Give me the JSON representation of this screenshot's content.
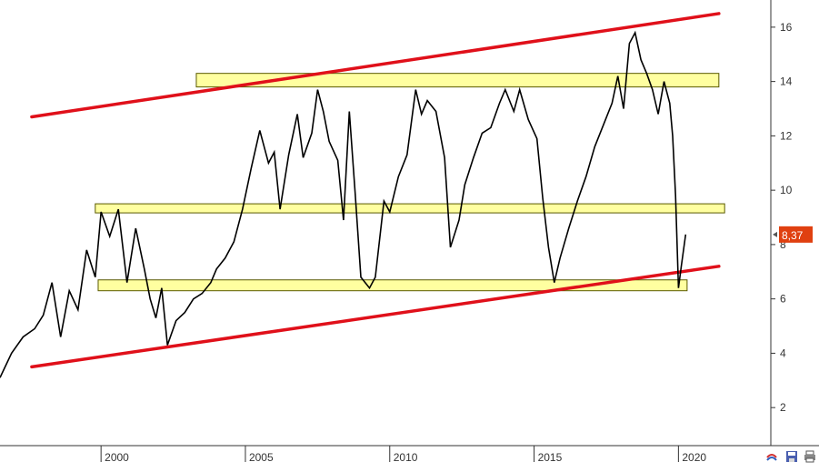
{
  "chart_data": {
    "type": "line",
    "title": "",
    "xlabel": "",
    "ylabel": "",
    "x_ticks": [
      "2000",
      "2005",
      "2010",
      "2015",
      "2020"
    ],
    "x_tick_values": [
      2000,
      2005,
      2010,
      2015,
      2020
    ],
    "y_ticks": [
      "2",
      "4",
      "6",
      "8",
      "10",
      "12",
      "14",
      "16"
    ],
    "y_tick_values": [
      2,
      4,
      6,
      8,
      10,
      12,
      14,
      16
    ],
    "xlim": [
      1996.5,
      2023.2
    ],
    "ylim": [
      0.6,
      17.0
    ],
    "grid": false,
    "last_price_label": "8,37",
    "last_price_value": 8.37,
    "series": [
      {
        "points": [
          [
            1996.5,
            3.1
          ],
          [
            1996.9,
            4.0
          ],
          [
            1997.3,
            4.6
          ],
          [
            1997.7,
            4.9
          ],
          [
            1998.0,
            5.4
          ],
          [
            1998.3,
            6.6
          ],
          [
            1998.6,
            4.6
          ],
          [
            1998.9,
            6.3
          ],
          [
            1999.2,
            5.6
          ],
          [
            1999.5,
            7.8
          ],
          [
            1999.8,
            6.8
          ],
          [
            2000.0,
            9.2
          ],
          [
            2000.3,
            8.3
          ],
          [
            2000.6,
            9.3
          ],
          [
            2000.9,
            6.6
          ],
          [
            2001.2,
            8.6
          ],
          [
            2001.5,
            7.1
          ],
          [
            2001.7,
            6.0
          ],
          [
            2001.9,
            5.3
          ],
          [
            2002.1,
            6.4
          ],
          [
            2002.3,
            4.3
          ],
          [
            2002.6,
            5.2
          ],
          [
            2002.9,
            5.5
          ],
          [
            2003.2,
            6.0
          ],
          [
            2003.5,
            6.2
          ],
          [
            2003.8,
            6.6
          ],
          [
            2004.0,
            7.1
          ],
          [
            2004.3,
            7.5
          ],
          [
            2004.6,
            8.1
          ],
          [
            2004.9,
            9.3
          ],
          [
            2005.2,
            10.8
          ],
          [
            2005.5,
            12.2
          ],
          [
            2005.8,
            11.0
          ],
          [
            2006.0,
            11.4
          ],
          [
            2006.2,
            9.3
          ],
          [
            2006.5,
            11.3
          ],
          [
            2006.8,
            12.8
          ],
          [
            2007.0,
            11.2
          ],
          [
            2007.3,
            12.1
          ],
          [
            2007.5,
            13.7
          ],
          [
            2007.7,
            12.9
          ],
          [
            2007.9,
            11.8
          ],
          [
            2008.2,
            11.1
          ],
          [
            2008.4,
            8.9
          ],
          [
            2008.6,
            12.9
          ],
          [
            2008.8,
            9.9
          ],
          [
            2009.0,
            6.8
          ],
          [
            2009.3,
            6.4
          ],
          [
            2009.5,
            6.8
          ],
          [
            2009.8,
            9.6
          ],
          [
            2010.0,
            9.2
          ],
          [
            2010.3,
            10.5
          ],
          [
            2010.6,
            11.3
          ],
          [
            2010.9,
            13.7
          ],
          [
            2011.1,
            12.8
          ],
          [
            2011.3,
            13.3
          ],
          [
            2011.6,
            12.9
          ],
          [
            2011.9,
            11.2
          ],
          [
            2012.1,
            7.9
          ],
          [
            2012.4,
            8.9
          ],
          [
            2012.6,
            10.2
          ],
          [
            2012.9,
            11.2
          ],
          [
            2013.2,
            12.1
          ],
          [
            2013.5,
            12.3
          ],
          [
            2013.8,
            13.2
          ],
          [
            2014.0,
            13.7
          ],
          [
            2014.3,
            12.9
          ],
          [
            2014.5,
            13.7
          ],
          [
            2014.8,
            12.6
          ],
          [
            2015.1,
            11.9
          ],
          [
            2015.3,
            9.7
          ],
          [
            2015.5,
            7.9
          ],
          [
            2015.7,
            6.6
          ],
          [
            2015.9,
            7.5
          ],
          [
            2016.2,
            8.6
          ],
          [
            2016.5,
            9.6
          ],
          [
            2016.8,
            10.5
          ],
          [
            2017.1,
            11.6
          ],
          [
            2017.4,
            12.4
          ],
          [
            2017.7,
            13.2
          ],
          [
            2017.9,
            14.2
          ],
          [
            2018.1,
            13.0
          ],
          [
            2018.3,
            15.4
          ],
          [
            2018.5,
            15.8
          ],
          [
            2018.7,
            14.8
          ],
          [
            2018.9,
            14.3
          ],
          [
            2019.1,
            13.7
          ],
          [
            2019.3,
            12.8
          ],
          [
            2019.5,
            14.0
          ],
          [
            2019.7,
            13.2
          ],
          [
            2019.8,
            12.0
          ],
          [
            2019.9,
            9.8
          ],
          [
            2020.0,
            6.4
          ],
          [
            2020.1,
            7.2
          ],
          [
            2020.25,
            8.37
          ]
        ]
      }
    ],
    "annotations": {
      "red_trendlines": [
        {
          "from": [
            1997.6,
            12.7
          ],
          "to": [
            2021.4,
            16.5
          ]
        },
        {
          "from": [
            1997.6,
            3.5
          ],
          "to": [
            2021.4,
            7.2
          ]
        }
      ],
      "yellow_bands": [
        {
          "x_from": 2003.3,
          "x_to": 2021.4,
          "y_from": 13.8,
          "y_to": 14.3
        },
        {
          "x_from": 1999.8,
          "x_to": 2021.6,
          "y_from": 9.2,
          "y_to": 9.5
        },
        {
          "x_from": 1999.9,
          "x_to": 2020.3,
          "y_from": 6.3,
          "y_to": 6.7
        }
      ]
    },
    "colors": {
      "price_line": "#000000",
      "trendline": "#e0101a",
      "band_fill": "#ffffa0",
      "band_border": "#5a5a00",
      "price_badge": "#e04010",
      "axis": "#333333"
    }
  },
  "toolbar": {
    "icons": [
      "chart-style-icon",
      "save-icon",
      "print-icon"
    ]
  }
}
